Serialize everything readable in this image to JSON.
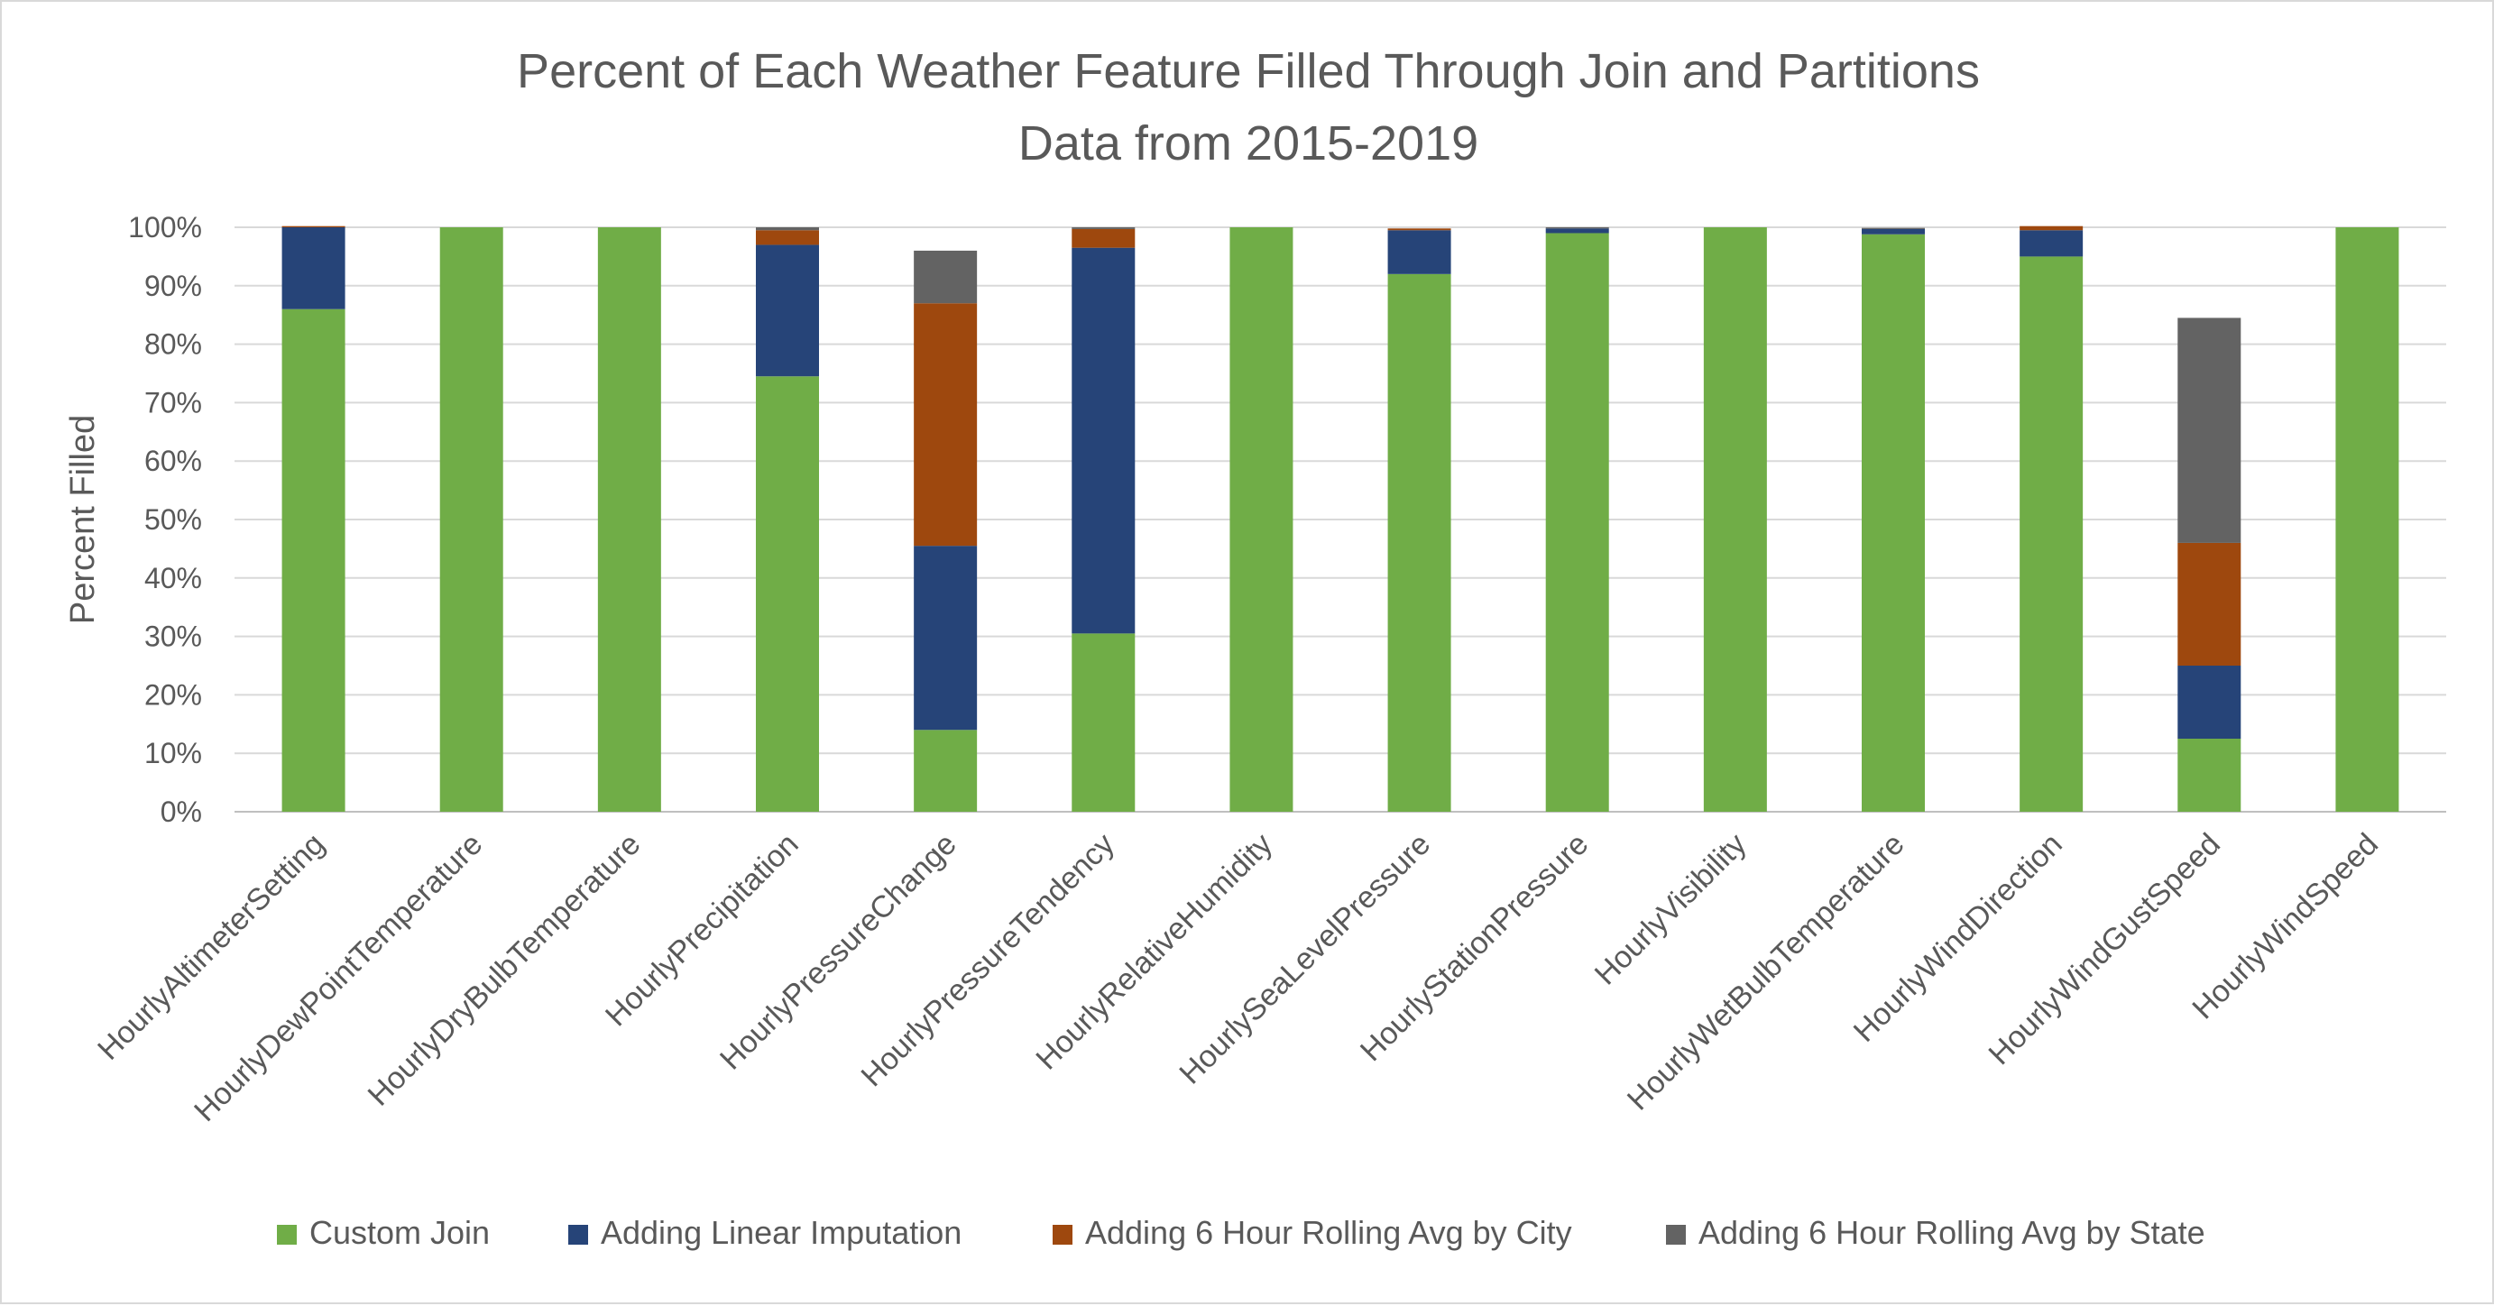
{
  "chart_data": {
    "type": "bar",
    "stacked": true,
    "title": "Percent of Each Weather Feature Filled Through Join and Partitions",
    "subtitle": "Data from 2015-2019",
    "xlabel": "",
    "ylabel": "Percent Filled",
    "ylim": [
      0,
      100
    ],
    "yticks": [
      "0%",
      "10%",
      "20%",
      "30%",
      "40%",
      "50%",
      "60%",
      "70%",
      "80%",
      "90%",
      "100%"
    ],
    "grid": true,
    "legend_position": "bottom",
    "categories": [
      "HourlyAltimeterSetting",
      "HourlyDewPointTemperature",
      "HourlyDryBulbTemperature",
      "HourlyPrecipitation",
      "HourlyPressureChange",
      "HourlyPressureTendency",
      "HourlyRelativeHumidity",
      "HourlySeaLevelPressure",
      "HourlyStationPressure",
      "HourlyVisibility",
      "HourlyWetBulbTemperature",
      "HourlyWindDirection",
      "HourlyWindGustSpeed",
      "HourlyWindSpeed"
    ],
    "series": [
      {
        "name": "Custom Join",
        "color": "#70ad47",
        "values": [
          86,
          100,
          100,
          74.5,
          14,
          30.5,
          100,
          92,
          99,
          100,
          98.8,
          95,
          12.5,
          100
        ]
      },
      {
        "name": "Adding Linear Imputation",
        "color": "#264478",
        "values": [
          14,
          0,
          0,
          22.5,
          31.5,
          66,
          0,
          7.5,
          0.8,
          0,
          0.9,
          4.5,
          12.5,
          0
        ]
      },
      {
        "name": "Adding 6 Hour Rolling Avg by City",
        "color": "#9e480e",
        "values": [
          0.2,
          0,
          0,
          2.5,
          41.5,
          3.2,
          0,
          0.3,
          0,
          0,
          0,
          0.7,
          21,
          0
        ]
      },
      {
        "name": "Adding 6 Hour Rolling Avg by State",
        "color": "#636363",
        "values": [
          0,
          0,
          0,
          0.5,
          9,
          0.3,
          0,
          0,
          0.2,
          0,
          0.2,
          0,
          38.5,
          0
        ]
      }
    ]
  }
}
